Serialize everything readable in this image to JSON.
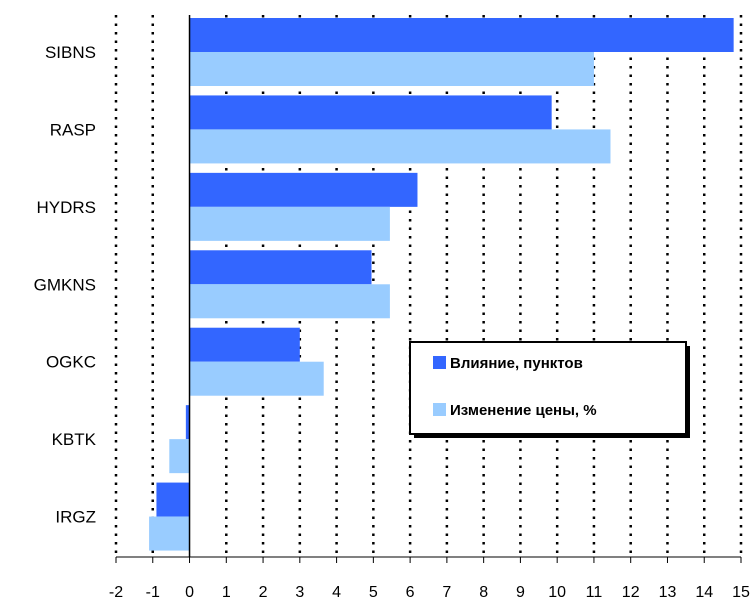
{
  "chart_data": {
    "type": "bar",
    "orientation": "horizontal",
    "categories": [
      "SIBNS",
      "RASP",
      "HYDRS",
      "GMKNS",
      "OGKC",
      "KBTK",
      "IRGZ"
    ],
    "series": [
      {
        "name": "Влияние, пунктов",
        "color": "#3366ff",
        "values": [
          14.8,
          9.85,
          6.2,
          4.95,
          3.0,
          -0.1,
          -0.9
        ]
      },
      {
        "name": "Изменение цены, %",
        "color": "#99ccff",
        "values": [
          11.0,
          11.45,
          5.45,
          5.45,
          3.65,
          -0.55,
          -1.1
        ]
      }
    ],
    "xlim": [
      -2,
      15
    ],
    "xticks": [
      "-2",
      "-1",
      "0",
      "1",
      "2",
      "3",
      "4",
      "5",
      "6",
      "7",
      "8",
      "9",
      "10",
      "11",
      "12",
      "13",
      "14",
      "15"
    ],
    "grid": "vertical dotted",
    "legend_position": "center-right"
  }
}
